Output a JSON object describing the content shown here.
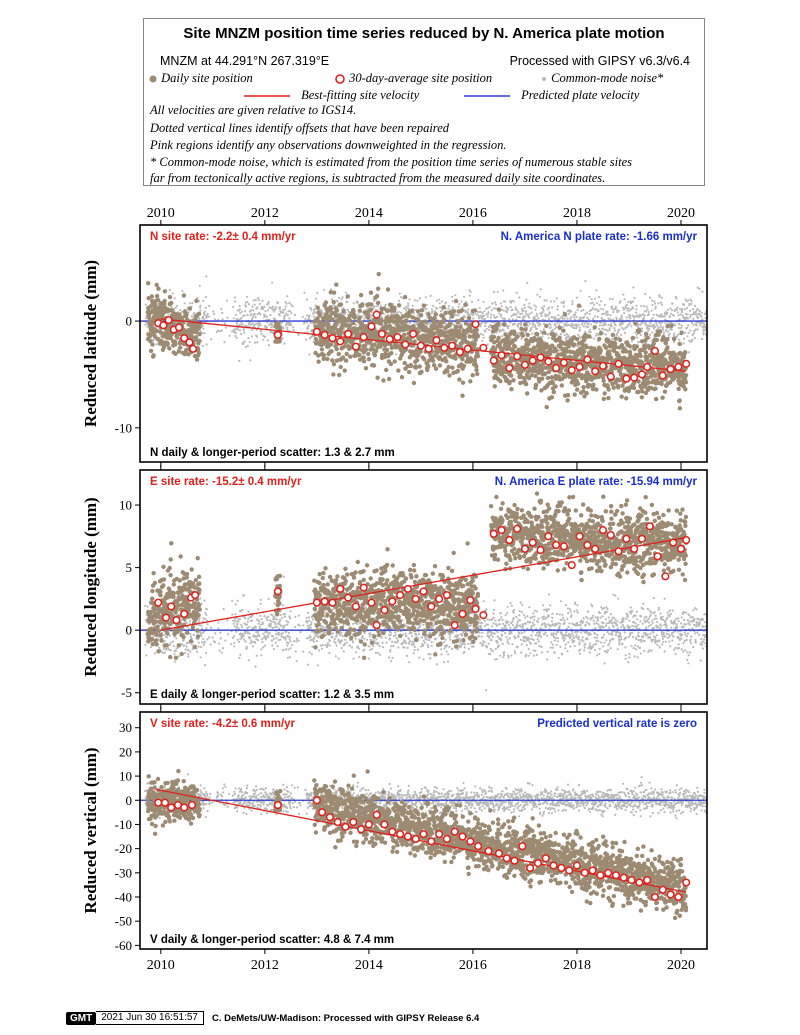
{
  "header": {
    "title": "Site MNZM position time series reduced by N. America plate motion",
    "station": "MNZM at 44.291°N 267.319°E",
    "processed": "Processed with GIPSY v6.3/v6.4",
    "legend": {
      "daily": "Daily site position",
      "avg30": "30-day-average site position",
      "common_mode": "Common-mode noise*",
      "best_fit": "Best-fitting site velocity",
      "plate": "Predicted plate velocity"
    },
    "notes": [
      "All velocities are given relative to IGS14.",
      "Dotted vertical lines identify offsets that have been repaired",
      "Pink regions identify any observations downweighted in the regression.",
      "* Common-mode noise, which is estimated from the position time series of numerous stable sites",
      "far from tectonically active regions, is subtracted from the measured daily site coordinates."
    ]
  },
  "colors": {
    "daily": "#9c8a72",
    "avg_outline": "#e0201c",
    "common_mode": "#b9b9b9",
    "best_fit": "#e0201c",
    "plate": "#2b3bd6",
    "rate_text_site": "#e0201c",
    "rate_text_plate": "#1a2ed0"
  },
  "chart_data": [
    {
      "type": "scatter",
      "component": "N",
      "ylabel": "Reduced latitude (mm)",
      "xlim": [
        2009.6,
        2020.5
      ],
      "ylim": [
        -13.2,
        9.0
      ],
      "yticks": [
        -10,
        0
      ],
      "ytick_labels": [
        "-10",
        "0"
      ],
      "xticks": [
        2010,
        2012,
        2014,
        2016,
        2018,
        2020
      ],
      "xtick_labels": [
        "2010",
        "2012",
        "2014",
        "2016",
        "2018",
        "2020"
      ],
      "site_rate_label": "N site rate:  -2.2± 0.4 mm/yr",
      "plate_rate_label": "N. America N plate rate: -1.66 mm/yr",
      "scatter_label": "N daily & longer-period scatter:   1.3 &   2.7 mm",
      "best_fit_line": {
        "x": [
          2010.0,
          2020.1
        ],
        "y": [
          0.2,
          -4.7
        ]
      },
      "plate_line": {
        "x": [
          2009.6,
          2020.5
        ],
        "y": [
          0,
          0
        ]
      },
      "avg30": {
        "x": [
          2009.95,
          2010.05,
          2010.15,
          2010.25,
          2010.35,
          2010.45,
          2010.55,
          2010.62,
          2012.25,
          2013.0,
          2013.15,
          2013.3,
          2013.45,
          2013.6,
          2013.75,
          2013.9,
          2014.05,
          2014.15,
          2014.25,
          2014.4,
          2014.55,
          2014.7,
          2014.85,
          2015.0,
          2015.15,
          2015.3,
          2015.45,
          2015.6,
          2015.75,
          2015.9,
          2016.05,
          2016.2,
          2016.4,
          2016.55,
          2016.7,
          2016.85,
          2017.0,
          2017.15,
          2017.3,
          2017.45,
          2017.6,
          2017.75,
          2017.9,
          2018.05,
          2018.2,
          2018.35,
          2018.5,
          2018.65,
          2018.8,
          2018.95,
          2019.1,
          2019.25,
          2019.35,
          2019.5,
          2019.65,
          2019.8,
          2019.95,
          2020.1
        ],
        "y": [
          -0.2,
          -0.4,
          0.1,
          -0.8,
          -0.6,
          -1.6,
          -2.0,
          -2.6,
          -1.3,
          -1.0,
          -1.3,
          -1.6,
          -1.9,
          -1.2,
          -2.4,
          -1.5,
          -0.5,
          0.6,
          -1.2,
          -1.7,
          -1.5,
          -2.2,
          -1.2,
          -2.3,
          -2.6,
          -1.8,
          -2.5,
          -2.3,
          -2.9,
          -2.6,
          -0.3,
          -2.5,
          -3.7,
          -3.2,
          -4.4,
          -3.3,
          -4.1,
          -3.7,
          -3.4,
          -3.8,
          -4.4,
          -3.9,
          -4.6,
          -4.3,
          -3.6,
          -4.7,
          -4.2,
          -5.2,
          -4.0,
          -5.4,
          -5.3,
          -5.0,
          -4.3,
          -2.8,
          -5.1,
          -4.5,
          -4.3,
          -4.0
        ]
      },
      "daily_clusters": [
        {
          "x": [
            2009.75,
            2010.75
          ],
          "trend": [
            0.3,
            -1.5
          ],
          "sd": 1.3
        },
        {
          "x": [
            2012.2,
            2012.3
          ],
          "trend": [
            -1.2,
            -1.2
          ],
          "sd": 0.8
        },
        {
          "x": [
            2012.95,
            2016.1
          ],
          "trend": [
            -0.9,
            -2.0
          ],
          "sd": 1.5
        },
        {
          "x": [
            2016.35,
            2020.1
          ],
          "trend": [
            -3.5,
            -4.3
          ],
          "sd": 1.4
        }
      ],
      "common_mode_sd": 1.1
    },
    {
      "type": "scatter",
      "component": "E",
      "ylabel": "Reduced longitude (mm)",
      "xlim": [
        2009.6,
        2020.5
      ],
      "ylim": [
        -5.9,
        12.8
      ],
      "yticks": [
        -5,
        0,
        5,
        10
      ],
      "ytick_labels": [
        "-5",
        "0",
        "5",
        "10"
      ],
      "xticks": [
        2010,
        2012,
        2014,
        2016,
        2018,
        2020
      ],
      "xtick_labels": [
        "2010",
        "2012",
        "2014",
        "2016",
        "2018",
        "2020"
      ],
      "site_rate_label": "E site rate: -15.2± 0.4 mm/yr",
      "plate_rate_label": "N. America E plate rate: -15.94 mm/yr",
      "scatter_label": "E daily & longer-period scatter:   1.2 &   3.5 mm",
      "best_fit_line": {
        "x": [
          2010.0,
          2020.1
        ],
        "y": [
          0.0,
          7.4
        ]
      },
      "plate_line": {
        "x": [
          2009.6,
          2020.5
        ],
        "y": [
          0,
          0
        ]
      },
      "avg30": {
        "x": [
          2009.95,
          2010.1,
          2010.2,
          2010.3,
          2010.45,
          2010.58,
          2010.66,
          2012.25,
          2013.0,
          2013.15,
          2013.3,
          2013.45,
          2013.6,
          2013.75,
          2013.9,
          2014.05,
          2014.15,
          2014.3,
          2014.45,
          2014.6,
          2014.75,
          2014.9,
          2015.05,
          2015.2,
          2015.35,
          2015.5,
          2015.65,
          2015.8,
          2015.95,
          2016.05,
          2016.2,
          2016.4,
          2016.55,
          2016.7,
          2016.85,
          2017.0,
          2017.15,
          2017.3,
          2017.45,
          2017.6,
          2017.75,
          2017.9,
          2018.05,
          2018.2,
          2018.35,
          2018.5,
          2018.65,
          2018.8,
          2018.95,
          2019.1,
          2019.25,
          2019.4,
          2019.55,
          2019.7,
          2019.85,
          2020.0,
          2020.1
        ],
        "y": [
          2.2,
          1.0,
          1.9,
          0.8,
          1.3,
          2.6,
          2.8,
          3.1,
          2.2,
          2.3,
          2.2,
          3.3,
          2.6,
          1.9,
          3.4,
          2.2,
          0.4,
          1.6,
          2.3,
          2.8,
          3.3,
          2.5,
          3.1,
          1.9,
          2.5,
          2.8,
          0.4,
          1.3,
          2.4,
          1.7,
          1.2,
          7.7,
          8.0,
          7.2,
          8.1,
          6.5,
          7.0,
          6.4,
          7.5,
          6.8,
          6.7,
          5.2,
          7.5,
          6.8,
          6.5,
          8.0,
          7.6,
          6.3,
          7.3,
          6.5,
          7.3,
          8.3,
          5.9,
          4.3,
          7.0,
          6.5,
          7.2
        ]
      },
      "daily_clusters": [
        {
          "x": [
            2009.75,
            2010.75
          ],
          "trend": [
            1.0,
            2.3
          ],
          "sd": 1.4
        },
        {
          "x": [
            2012.2,
            2012.3
          ],
          "trend": [
            3.0,
            3.0
          ],
          "sd": 0.8
        },
        {
          "x": [
            2012.95,
            2016.1
          ],
          "trend": [
            2.3,
            2.0
          ],
          "sd": 1.3
        },
        {
          "x": [
            2016.35,
            2020.1
          ],
          "trend": [
            7.8,
            6.8
          ],
          "sd": 1.2
        }
      ],
      "common_mode_sd": 1.0
    },
    {
      "type": "scatter",
      "component": "V",
      "ylabel": "Reduced vertical (mm)",
      "xlim": [
        2009.6,
        2020.5
      ],
      "ylim": [
        -61.5,
        36.5
      ],
      "yticks": [
        -60,
        -50,
        -40,
        -30,
        -20,
        -10,
        0,
        10,
        20,
        30
      ],
      "ytick_labels": [
        "-60",
        "-50",
        "-40",
        "-30",
        "-20",
        "-10",
        "0",
        "10",
        "20",
        "30"
      ],
      "xticks": [
        2010,
        2012,
        2014,
        2016,
        2018,
        2020
      ],
      "xtick_labels": [
        "2010",
        "2012",
        "2014",
        "2016",
        "2018",
        "2020"
      ],
      "site_rate_label": "V site rate:  -4.2± 0.6 mm/yr",
      "plate_rate_label": "Predicted vertical rate is zero",
      "scatter_label": "V daily & longer-period scatter:   4.8 &   7.4 mm",
      "best_fit_line": {
        "x": [
          2009.9,
          2020.1
        ],
        "y": [
          4.5,
          -38.0
        ]
      },
      "plate_line": {
        "x": [
          2009.6,
          2020.5
        ],
        "y": [
          0,
          0
        ]
      },
      "avg30": {
        "x": [
          2009.95,
          2010.08,
          2010.2,
          2010.33,
          2010.45,
          2010.6,
          2012.25,
          2013.0,
          2013.1,
          2013.25,
          2013.4,
          2013.55,
          2013.7,
          2013.85,
          2014.0,
          2014.15,
          2014.3,
          2014.45,
          2014.6,
          2014.75,
          2014.9,
          2015.05,
          2015.2,
          2015.35,
          2015.5,
          2015.65,
          2015.8,
          2015.95,
          2016.1,
          2016.3,
          2016.5,
          2016.65,
          2016.8,
          2016.95,
          2017.1,
          2017.25,
          2017.4,
          2017.55,
          2017.7,
          2017.85,
          2018.0,
          2018.15,
          2018.3,
          2018.45,
          2018.6,
          2018.75,
          2018.9,
          2019.05,
          2019.2,
          2019.35,
          2019.5,
          2019.65,
          2019.8,
          2019.95,
          2020.1
        ],
        "y": [
          -1,
          -1,
          -3,
          -2,
          -3,
          -2,
          -2,
          0,
          -5,
          -7,
          -9,
          -11,
          -9,
          -12,
          -10,
          -6,
          -10,
          -13,
          -14,
          -15,
          -16,
          -14,
          -17,
          -14,
          -16,
          -13,
          -15,
          -17,
          -19,
          -21,
          -22,
          -24,
          -25,
          -19,
          -28,
          -26,
          -24,
          -27,
          -28,
          -29,
          -27,
          -30,
          -29,
          -31,
          -30,
          -31,
          -32,
          -33,
          -34,
          -33,
          -40,
          -37,
          -39,
          -40,
          -34
        ]
      },
      "daily_clusters": [
        {
          "x": [
            2009.75,
            2010.75
          ],
          "trend": [
            0.0,
            -2.0
          ],
          "sd": 4.0
        },
        {
          "x": [
            2012.2,
            2012.3
          ],
          "trend": [
            -1.0,
            -1.0
          ],
          "sd": 2.0
        },
        {
          "x": [
            2012.95,
            2020.1
          ],
          "trend": [
            -2.0,
            -37.0
          ],
          "sd": 5.0
        }
      ],
      "common_mode_sd": 2.5
    }
  ],
  "footer": {
    "logo": "GMT",
    "timestamp": "2021 Jun 30 16:51:57",
    "credit": "C. DeMets/UW-Madison: Processed with GIPSY Release 6.4"
  }
}
